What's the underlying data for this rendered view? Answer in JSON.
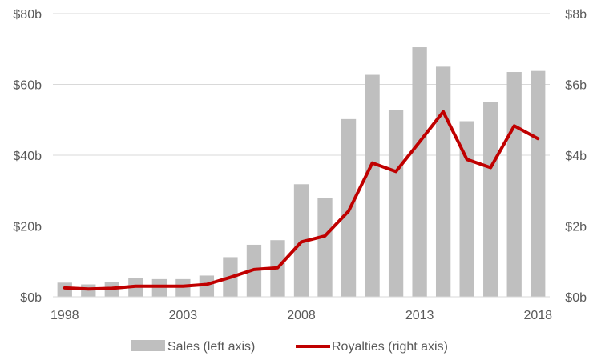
{
  "chart_data": {
    "type": "bar",
    "x": [
      1998,
      1999,
      2000,
      2001,
      2002,
      2003,
      2004,
      2005,
      2006,
      2007,
      2008,
      2009,
      2010,
      2011,
      2012,
      2013,
      2014,
      2015,
      2016,
      2017,
      2018
    ],
    "x_tick_labels": [
      "1998",
      "2003",
      "2008",
      "2013",
      "2018"
    ],
    "series": [
      {
        "name": "Sales (left axis)",
        "type": "bar",
        "axis": "left",
        "color": "#bfbfbf",
        "values": [
          4.0,
          3.5,
          4.2,
          5.2,
          5.0,
          5.0,
          6.0,
          11.2,
          14.7,
          16.0,
          31.8,
          28.0,
          50.2,
          62.7,
          52.8,
          70.5,
          65.0,
          49.6,
          55.0,
          63.5,
          63.8
        ]
      },
      {
        "name": "Royalties (right axis)",
        "type": "line",
        "axis": "right",
        "color": "#c00000",
        "values": [
          0.25,
          0.22,
          0.24,
          0.3,
          0.3,
          0.3,
          0.35,
          0.55,
          0.77,
          0.82,
          1.55,
          1.72,
          2.42,
          3.78,
          3.54,
          4.38,
          5.23,
          3.88,
          3.65,
          4.83,
          4.47
        ]
      }
    ],
    "y_left": {
      "ylim": [
        0,
        80
      ],
      "ticks": [
        0,
        20,
        40,
        60,
        80
      ],
      "tick_labels": [
        "$0b",
        "$20b",
        "$40b",
        "$60b",
        "$80b"
      ]
    },
    "y_right": {
      "ylim": [
        0,
        8
      ],
      "ticks": [
        0,
        2,
        4,
        6,
        8
      ],
      "tick_labels": [
        "$0b",
        "$2b",
        "$4b",
        "$6b",
        "$8b"
      ]
    },
    "grid": true,
    "legend": {
      "placement": "bottom",
      "entries": [
        "Sales (left axis)",
        "Royalties (right axis)"
      ]
    },
    "title": "",
    "xlabel": "",
    "ylabel": ""
  }
}
